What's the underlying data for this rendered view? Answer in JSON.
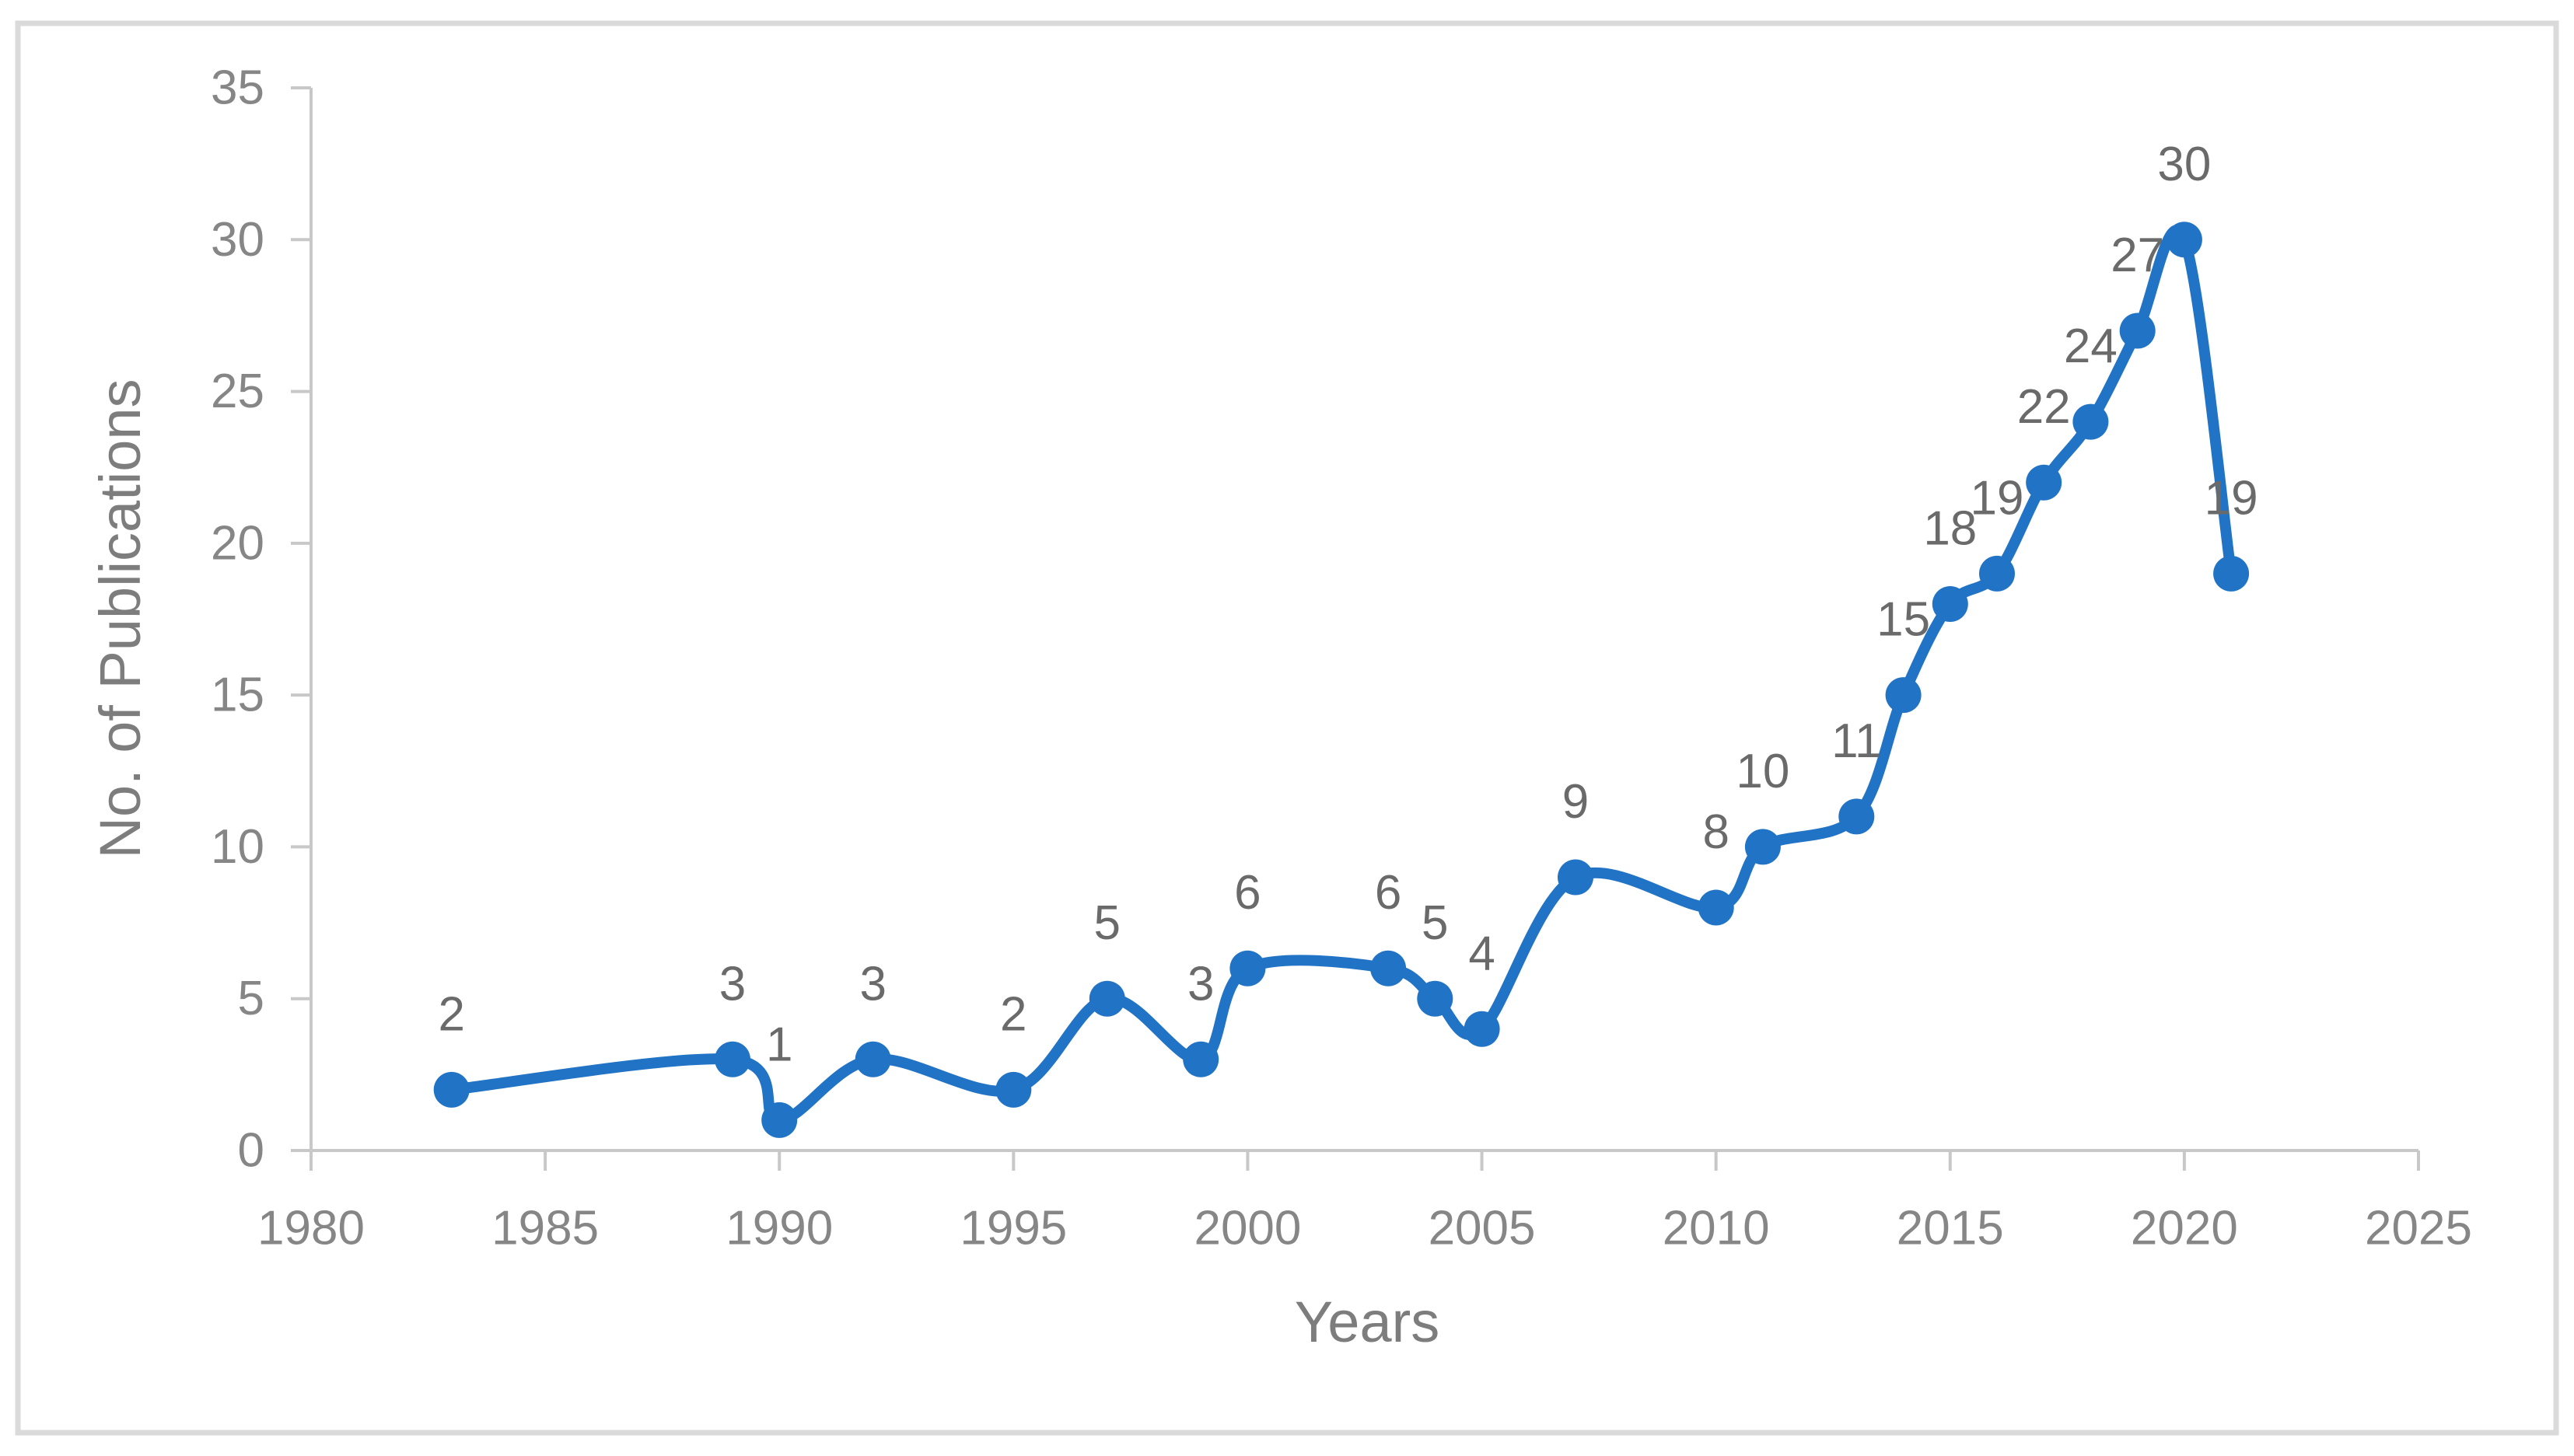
{
  "chart_data": {
    "type": "line",
    "title": "",
    "xlabel": "Years",
    "ylabel": "No. of Publications",
    "x": [
      1983,
      1989,
      1990,
      1992,
      1995,
      1997,
      1999,
      2000,
      2003,
      2004,
      2005,
      2007,
      2010,
      2011,
      2013,
      2014,
      2015,
      2016,
      2017,
      2018,
      2019,
      2020,
      2021
    ],
    "values": [
      2,
      3,
      1,
      3,
      2,
      5,
      3,
      6,
      6,
      5,
      4,
      9,
      8,
      10,
      11,
      15,
      18,
      19,
      22,
      24,
      27,
      30,
      19
    ],
    "x_ticks": [
      1980,
      1985,
      1990,
      1995,
      2000,
      2005,
      2010,
      2015,
      2020,
      2025
    ],
    "y_ticks": [
      0,
      5,
      10,
      15,
      20,
      25,
      30,
      35
    ],
    "xlim": [
      1980,
      2025
    ],
    "ylim": [
      0,
      35
    ],
    "grid": false,
    "legend": null,
    "smoothed": true,
    "marker": "circle",
    "line_color": "#2173C5",
    "marker_color": "#2173C5",
    "data_label_color": "#6A6A6A",
    "tick_label_color": "#868686",
    "axis_title_color": "#7D7D7D",
    "axis_line_color": "#C8C8C8",
    "border_color": "#DADADA",
    "background_color": "#FFFFFF"
  }
}
